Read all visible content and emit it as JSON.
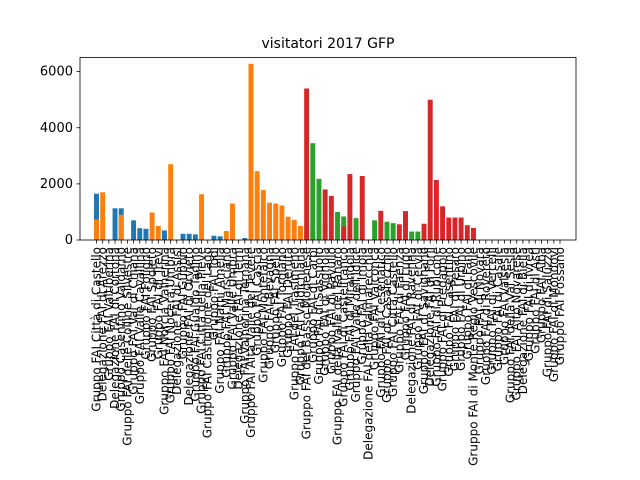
{
  "chart_data": {
    "type": "bar",
    "title": "visitatori  2017  GFP",
    "xlabel": "",
    "ylabel": "",
    "ylim": [
      0,
      6500
    ],
    "yticks": [
      0,
      2000,
      4000,
      6000
    ],
    "ytick_labels": [
      "0",
      "2000",
      "4000",
      "6000"
    ],
    "grid": false,
    "colors": {
      "blue": "#1f77b4",
      "orange": "#ff7f0e",
      "green": "#2ca02c",
      "red": "#d62728"
    },
    "tick_labels": [
      "Gruppo FAI Città di Castello",
      "Delegazione FAI di Arezzo",
      "Gruppo FAI Valtiberina",
      "Delegazione FAI di Cortona",
      "Gruppo Casentino Valdarno",
      "Gruppo FAI delle Colline Silvestre",
      "Gruppo FAI Val di Chiana",
      "Gruppo FAI Valle Cavallina",
      "Gruppo FAI Foligno",
      "Gruppo FAI Spoleto",
      "Gruppo FAI di Trevi",
      "Gruppo FAI Norcia Valnerina",
      "Gruppo FAI Nocera Umbra",
      "Delegazione FAI di Assisi",
      "Gruppo FAI Gubbio",
      "Delegazione FAI di Orvieto",
      "Gruppo FAI Gualdo Tadino",
      "Gruppo FAI Città della Pieve",
      "Gruppo FAI Castiglione del Lago",
      "Gruppo FAI Todi",
      "Gruppo FAI Narni Amelia",
      "Gruppo FAI Marsciano",
      "Gruppo FAI Valle Umbra",
      "Delegazione FAI di Terni",
      "Gruppo FAI Valnerina Ternana",
      "Gruppo FAI Alta Valle del Tevere",
      "Gruppo FAI Cascia",
      "Gruppo FAI Montefalco",
      "Gruppo FAI Bevagna",
      "Gruppo FAI Spello",
      "Gruppo FAI Torgiano",
      "Gruppo FAI Deruta",
      "Gruppo FAI del Trasimeno",
      "Gruppo FAI Valdichiana",
      "Gruppo FAI del Basso Modenese",
      "Gruppo FAI di Carpi",
      "Gruppo FAI di Sassuolo",
      "Gruppo FAI di Vignola",
      "Gruppo FAI di Pavullo",
      "Gruppo FAI della Valle del Panaro",
      "Gruppo FAI di Castelfranco",
      "Gruppo FAI di Mirandola",
      "Gruppo FAI Valle dell'Idice",
      "Gruppo FAI di Imola",
      "Delegazione FAI della Valmarecchia",
      "Gruppo FAI Valconca",
      "Gruppo FAI di Cesenatico",
      "Gruppo FAI di Casalecchio",
      "Gruppo FAI Città Castello",
      "Gruppo FAI di Faenza",
      "Gruppo FAI di Lugo",
      "Delegazione FAI di Ravenna",
      "Gruppo FAI di Cervia",
      "Gruppo FAI di Savignano",
      "Delegazione FAI di Forlì",
      "Gruppo FAI di Rubicone",
      "Gruppo FAI di Predappio",
      "Gruppo FAI Casentino",
      "Gruppo FAI di Pesaro",
      "Gruppo FAI di Urbino",
      "Gruppo FAI di Fano",
      "Gruppo FAI di Monte Regio Vescovile",
      "Gruppo FAI di Novara",
      "Gruppo FAI di Rovereto",
      "Gruppo FAI di Vercelli",
      "Gruppo FAI di Casale",
      "Gruppo FAI Valsesia",
      "Gruppo FAI della Val Sesia",
      "Gruppo FAI Alto Novarese",
      "Delegazione FAI di Biella",
      "Gruppo FAI di Ivrea",
      "Gruppo FAI di Asti",
      "Gruppo FAI Alba",
      "Gruppo FAI di Saluzzo",
      "Gruppo FAI di Mondovì",
      "Gruppo FAI Fossano"
    ],
    "series": [
      {
        "name": "blue",
        "color": "#1f77b4",
        "values": [
          1650,
          0,
          0,
          1130,
          1130,
          0,
          700,
          420,
          400,
          0,
          0,
          340,
          0,
          0,
          220,
          220,
          200,
          0,
          0,
          150,
          130,
          0,
          0,
          0,
          70,
          0,
          0,
          0,
          0,
          0,
          0,
          0,
          0,
          0,
          0,
          0,
          0,
          0,
          0,
          0,
          0,
          0,
          0,
          0,
          0,
          0,
          0,
          0,
          0,
          0,
          0,
          0,
          0,
          0,
          0,
          0,
          0,
          0,
          0,
          0,
          0,
          0,
          0,
          0,
          0,
          0,
          0,
          0,
          0,
          0,
          0,
          0,
          0,
          0,
          0,
          0
        ]
      },
      {
        "name": "orange",
        "color": "#ff7f0e",
        "values": [
          730,
          1700,
          0,
          0,
          900,
          0,
          0,
          0,
          0,
          980,
          500,
          0,
          2700,
          0,
          0,
          0,
          0,
          1630,
          0,
          0,
          0,
          320,
          1300,
          0,
          0,
          6280,
          2450,
          1780,
          1330,
          1300,
          1230,
          830,
          720,
          500,
          330,
          330,
          0,
          600,
          0,
          0,
          0,
          0,
          0,
          0,
          0,
          0,
          0,
          0,
          0,
          0,
          0,
          0,
          0,
          0,
          0,
          0,
          0,
          0,
          0,
          0,
          0,
          0,
          0,
          0,
          0,
          0,
          0,
          0,
          0,
          0,
          0,
          0,
          0,
          0,
          0,
          0
        ]
      },
      {
        "name": "green",
        "color": "#2ca02c",
        "values": [
          0,
          0,
          0,
          0,
          0,
          0,
          0,
          0,
          0,
          0,
          0,
          0,
          0,
          0,
          0,
          0,
          0,
          0,
          0,
          0,
          0,
          0,
          0,
          0,
          0,
          0,
          0,
          0,
          0,
          0,
          0,
          0,
          0,
          0,
          0,
          3450,
          2180,
          0,
          0,
          1000,
          840,
          0,
          780,
          0,
          0,
          700,
          0,
          650,
          600,
          0,
          0,
          300,
          300,
          0,
          0,
          0,
          0,
          0,
          0,
          0,
          0,
          0,
          0,
          0,
          0,
          0,
          0,
          0,
          0,
          0,
          0,
          0,
          0,
          0,
          0,
          0
        ]
      },
      {
        "name": "red",
        "color": "#d62728",
        "values": [
          0,
          0,
          0,
          0,
          0,
          0,
          0,
          0,
          0,
          0,
          0,
          0,
          0,
          0,
          0,
          0,
          0,
          0,
          0,
          0,
          0,
          0,
          0,
          0,
          0,
          0,
          0,
          0,
          0,
          0,
          0,
          0,
          0,
          0,
          5400,
          0,
          0,
          1800,
          1570,
          0,
          480,
          2350,
          0,
          2280,
          0,
          0,
          1040,
          0,
          0,
          560,
          1030,
          0,
          0,
          580,
          5000,
          2140,
          1200,
          800,
          800,
          800,
          530,
          430,
          0,
          0,
          0,
          0,
          0,
          0,
          0,
          0,
          0,
          0,
          0,
          0,
          0,
          0
        ]
      }
    ]
  }
}
